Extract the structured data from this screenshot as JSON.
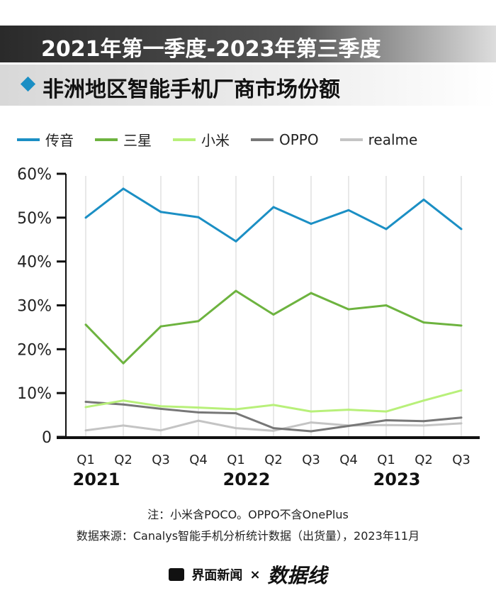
{
  "header": {
    "title_line1": "2021年第一季度-2023年第三季度",
    "title_line2": "非洲地区智能手机厂商市场份额"
  },
  "chart_data": {
    "type": "line",
    "categories": [
      "Q1",
      "Q2",
      "Q3",
      "Q4",
      "Q1",
      "Q2",
      "Q3",
      "Q4",
      "Q1",
      "Q2",
      "Q3"
    ],
    "year_labels": [
      "2021",
      "2022",
      "2023"
    ],
    "yticks": [
      "0",
      "10%",
      "20%",
      "30%",
      "40%",
      "50%",
      "60%"
    ],
    "ylim": [
      0,
      60
    ],
    "grid": "vertical",
    "legend_placement": "top",
    "series": [
      {
        "name": "传音",
        "color": "#1b8fc4",
        "values": [
          50.0,
          56.6,
          51.3,
          50.1,
          44.6,
          52.4,
          48.6,
          51.7,
          47.4,
          54.1,
          47.4
        ]
      },
      {
        "name": "三星",
        "color": "#6db33f",
        "values": [
          25.6,
          16.8,
          25.2,
          26.4,
          33.3,
          27.9,
          32.8,
          29.1,
          30.0,
          26.1,
          25.4
        ]
      },
      {
        "name": "小米",
        "color": "#b8f07a",
        "values": [
          6.8,
          8.3,
          7.0,
          6.7,
          6.3,
          7.3,
          5.8,
          6.2,
          5.8,
          8.3,
          10.6
        ]
      },
      {
        "name": "OPPO",
        "color": "#777777",
        "values": [
          8.0,
          7.4,
          6.4,
          5.6,
          5.4,
          2.0,
          1.3,
          2.5,
          3.8,
          3.6,
          4.4
        ]
      },
      {
        "name": "realme",
        "color": "#c4c4c4",
        "values": [
          1.5,
          2.6,
          1.5,
          3.7,
          2.0,
          1.4,
          3.3,
          2.6,
          2.7,
          2.6,
          3.1
        ]
      }
    ]
  },
  "notes": {
    "note": "注：小米含POCO。OPPO不含OnePlus",
    "source": "数据来源：Canalys智能手机分析统计数据（出货量），2023年11月"
  },
  "footer": {
    "brand": "界面新闻",
    "sep": "×",
    "partner": "数据线"
  }
}
